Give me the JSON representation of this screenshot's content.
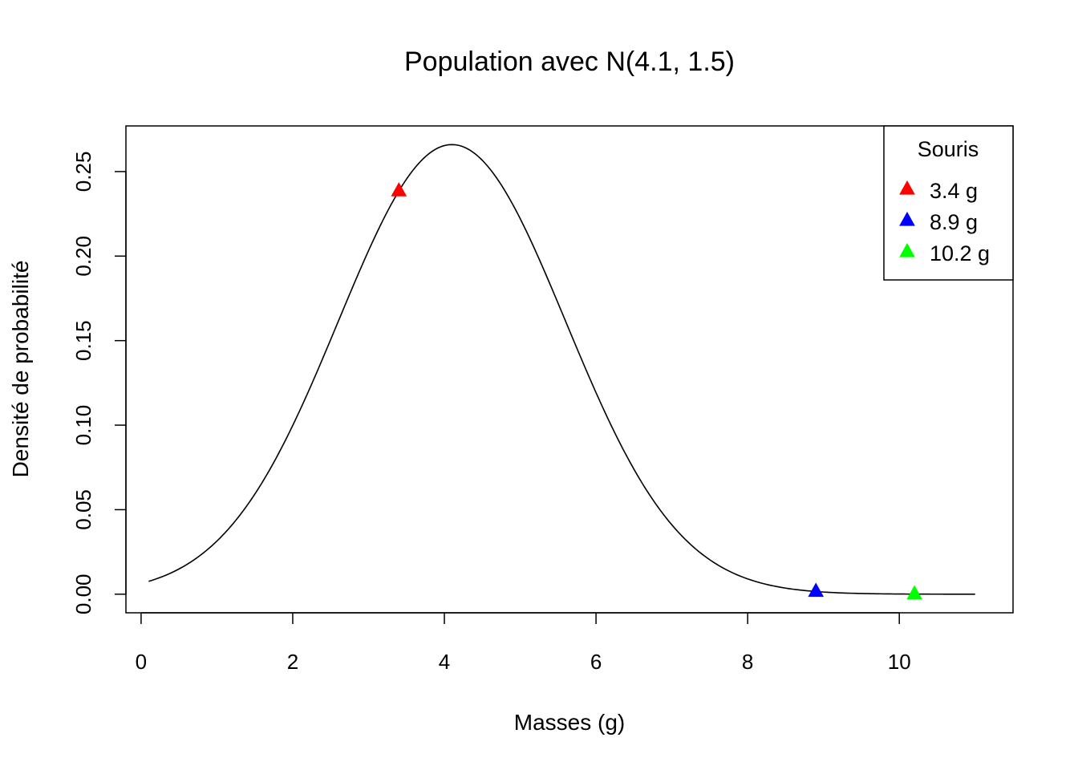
{
  "chart_data": {
    "type": "line",
    "title": "Population avec N(4.1, 1.5)",
    "xlabel": "Masses (g)",
    "ylabel": "Densité de probabilité",
    "xlim": [
      -0.2,
      11.5
    ],
    "ylim": [
      -0.011,
      0.277
    ],
    "x_ticks": [
      0,
      2,
      4,
      6,
      8,
      10
    ],
    "x_tick_labels": [
      "0",
      "2",
      "4",
      "6",
      "8",
      "10"
    ],
    "y_ticks": [
      0.0,
      0.05,
      0.1,
      0.15,
      0.2,
      0.25
    ],
    "y_tick_labels": [
      "0.00",
      "0.05",
      "0.10",
      "0.15",
      "0.20",
      "0.25"
    ],
    "grid": false,
    "curve": {
      "distribution": "normal",
      "mean": 4.1,
      "sd": 1.5,
      "x_range": [
        0.1,
        11
      ],
      "color": "#000000"
    },
    "points": [
      {
        "label": "3.4 g",
        "x": 3.4,
        "y": 0.2385,
        "color": "#ff0000",
        "marker": "triangle"
      },
      {
        "label": "8.9 g",
        "x": 8.9,
        "y": 0.0016,
        "color": "#0000ff",
        "marker": "triangle"
      },
      {
        "label": "10.2 g",
        "x": 10.2,
        "y": 0.0001,
        "color": "#00ff00",
        "marker": "triangle"
      }
    ],
    "legend": {
      "title": "Souris",
      "placement": "top-right",
      "entries": [
        "3.4 g",
        "8.9 g",
        "10.2 g"
      ]
    }
  }
}
